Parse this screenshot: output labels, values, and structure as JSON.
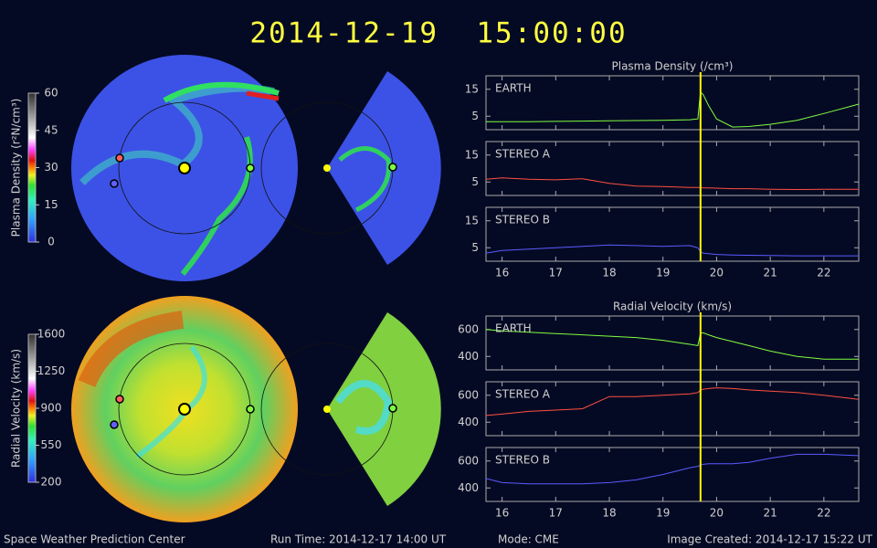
{
  "title": "2014-12-19  15:00:00",
  "footer": {
    "org": "Space Weather Prediction Center",
    "run_time": "Run Time: 2014-12-17 14:00 UT",
    "mode": "Mode: CME",
    "created": "Image Created: 2014-12-17 15:22 UT"
  },
  "chart_data": [
    {
      "type": "colorbar",
      "label": "Plasma Density (r²N/cm³)",
      "ylim": [
        0,
        60
      ],
      "yticks": [
        0,
        15,
        30,
        45,
        60
      ]
    },
    {
      "type": "colorbar",
      "label": "Radial Velocity (km/s)",
      "ylim": [
        200,
        1600
      ],
      "yticks": [
        200,
        550,
        900,
        1250,
        1600
      ]
    },
    {
      "type": "line",
      "title": "Plasma Density (/cm³)",
      "xlim": [
        15.7,
        22.65
      ],
      "xticks": [
        16,
        17,
        18,
        19,
        20,
        21,
        22
      ],
      "ylim": [
        0,
        20
      ],
      "yticks": [
        5,
        15
      ],
      "time_marker": 19.7,
      "marker_color": "#ffff00",
      "x": [
        15.7,
        16,
        16.5,
        17,
        17.5,
        18,
        18.5,
        19,
        19.5,
        19.65,
        19.7,
        19.75,
        19.85,
        20,
        20.3,
        20.6,
        21,
        21.5,
        22,
        22.65
      ],
      "series": [
        {
          "name": "EARTH",
          "color": "#80ff40",
          "values": [
            3,
            3,
            3,
            3.1,
            3.2,
            3.3,
            3.4,
            3.5,
            3.7,
            4,
            14,
            13,
            9,
            4,
            1,
            1.2,
            2,
            3.5,
            6,
            9.5
          ]
        },
        {
          "name": "STEREO A",
          "color": "#ff5040",
          "values": [
            6,
            6.5,
            6,
            5.8,
            6.2,
            4.5,
            3.5,
            3.3,
            3,
            3,
            3,
            2.8,
            2.8,
            2.7,
            2.5,
            2.5,
            2.3,
            2.2,
            2.3,
            2.3
          ]
        },
        {
          "name": "STEREO B",
          "color": "#5a5aff",
          "values": [
            3,
            4,
            4.5,
            5,
            5.5,
            6,
            5.8,
            5.5,
            5.8,
            5,
            3.5,
            3,
            2.8,
            2.5,
            2.3,
            2.2,
            2.1,
            2,
            2,
            2
          ]
        }
      ]
    },
    {
      "type": "line",
      "title": "Radial Velocity (km/s)",
      "xlim": [
        15.7,
        22.65
      ],
      "xticks": [
        16,
        17,
        18,
        19,
        20,
        21,
        22
      ],
      "ylim": [
        300,
        700
      ],
      "yticks": [
        400,
        600
      ],
      "time_marker": 19.7,
      "marker_color": "#ffff00",
      "x": [
        15.7,
        16,
        16.5,
        17,
        17.5,
        18,
        18.5,
        19,
        19.5,
        19.65,
        19.7,
        19.75,
        19.85,
        20,
        20.3,
        20.6,
        21,
        21.5,
        22,
        22.65
      ],
      "series": [
        {
          "name": "EARTH",
          "color": "#80ff40",
          "values": [
            600,
            590,
            580,
            570,
            560,
            550,
            540,
            520,
            490,
            480,
            570,
            575,
            560,
            540,
            510,
            480,
            440,
            400,
            380,
            380
          ]
        },
        {
          "name": "STEREO A",
          "color": "#ff5040",
          "values": [
            450,
            460,
            480,
            490,
            500,
            590,
            590,
            600,
            610,
            620,
            640,
            645,
            650,
            655,
            650,
            640,
            630,
            620,
            600,
            570
          ]
        },
        {
          "name": "STEREO B",
          "color": "#5a5aff",
          "values": [
            470,
            440,
            430,
            430,
            430,
            440,
            460,
            500,
            550,
            560,
            570,
            575,
            580,
            580,
            580,
            590,
            620,
            650,
            650,
            640
          ]
        }
      ]
    }
  ]
}
